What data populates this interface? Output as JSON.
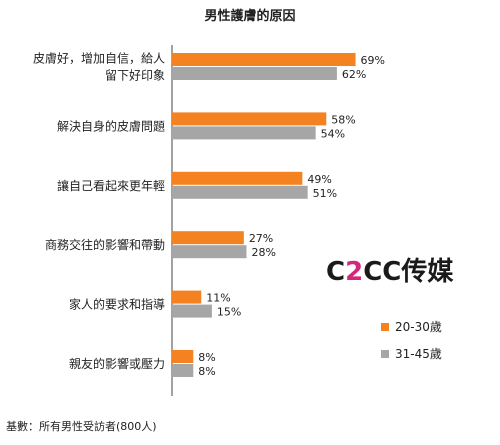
{
  "chart_data": {
    "type": "bar",
    "title": "男性護膚的原因",
    "categories": [
      [
        "皮膚好，增加自信，給人",
        "留下好印象"
      ],
      [
        "解決自身的皮膚問題"
      ],
      [
        "讓自己看起來更年輕"
      ],
      [
        "商務交往的影響和帶動"
      ],
      [
        "家人的要求和指導"
      ],
      [
        "親友的影響或壓力"
      ]
    ],
    "series": [
      {
        "name": "20-30歲",
        "color": "#f58220",
        "values": [
          69,
          58,
          49,
          27,
          11,
          8
        ]
      },
      {
        "name": "31-45歲",
        "color": "#a6a6a6",
        "values": [
          62,
          54,
          51,
          28,
          15,
          8
        ]
      }
    ],
    "value_suffix": "%",
    "xlim": [
      0,
      100
    ],
    "legend_position": "bottom-right",
    "orientation": "horizontal"
  },
  "brand": {
    "prefix": "C",
    "accent": "2",
    "suffix": "CC传媒"
  },
  "footnote": "基數：所有男性受訪者(800人)"
}
